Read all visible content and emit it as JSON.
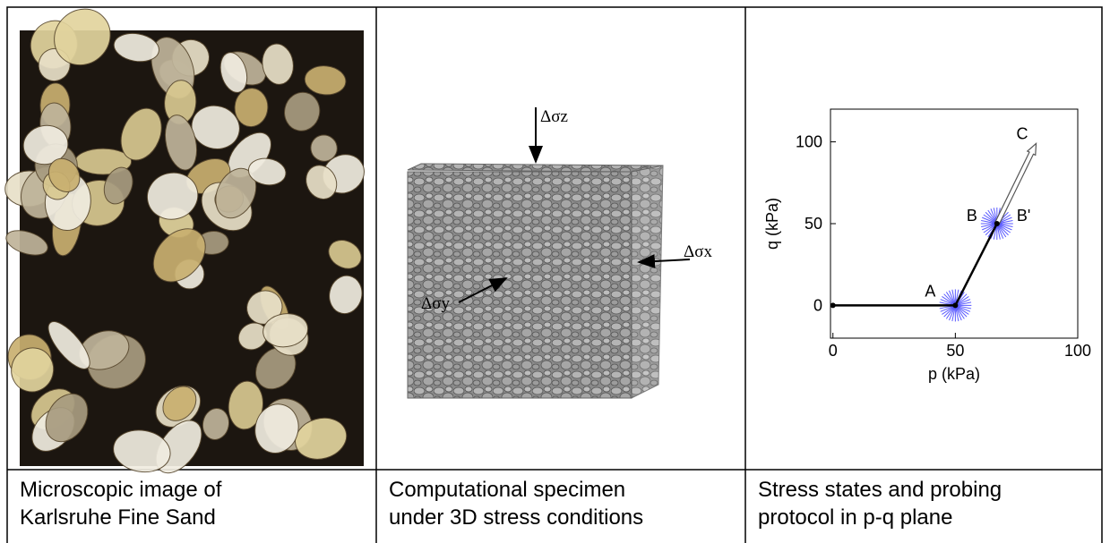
{
  "panels": [
    {
      "caption": [
        "Microscopic image of",
        "Karlsruhe Fine Sand"
      ]
    },
    {
      "caption": [
        "Computational specimen",
        "under 3D stress conditions"
      ],
      "labels": [
        "Δσz",
        "Δσx",
        "Δσy"
      ]
    },
    {
      "caption": [
        "Stress states and probing",
        "protocol in p-q plane"
      ]
    }
  ],
  "chart_data": {
    "type": "line",
    "xlabel": "p (kPa)",
    "ylabel": "q (kPa)",
    "x": [
      0,
      50,
      67
    ],
    "values": [
      0,
      0,
      50
    ],
    "color": "#000000",
    "probe_color": "#5a5aff",
    "xlim": [
      -1,
      100
    ],
    "ylim": [
      -20,
      120
    ],
    "xticks": [
      0,
      50,
      100
    ],
    "yticks": [
      0,
      50,
      100
    ],
    "annotations": [
      {
        "text": "A",
        "x": 50,
        "y": 0
      },
      {
        "text": "B",
        "x": 67,
        "y": 50
      },
      {
        "text": "B'",
        "x": 67,
        "y": 50
      },
      {
        "text": "C",
        "x": 83,
        "y": 99
      }
    ]
  }
}
